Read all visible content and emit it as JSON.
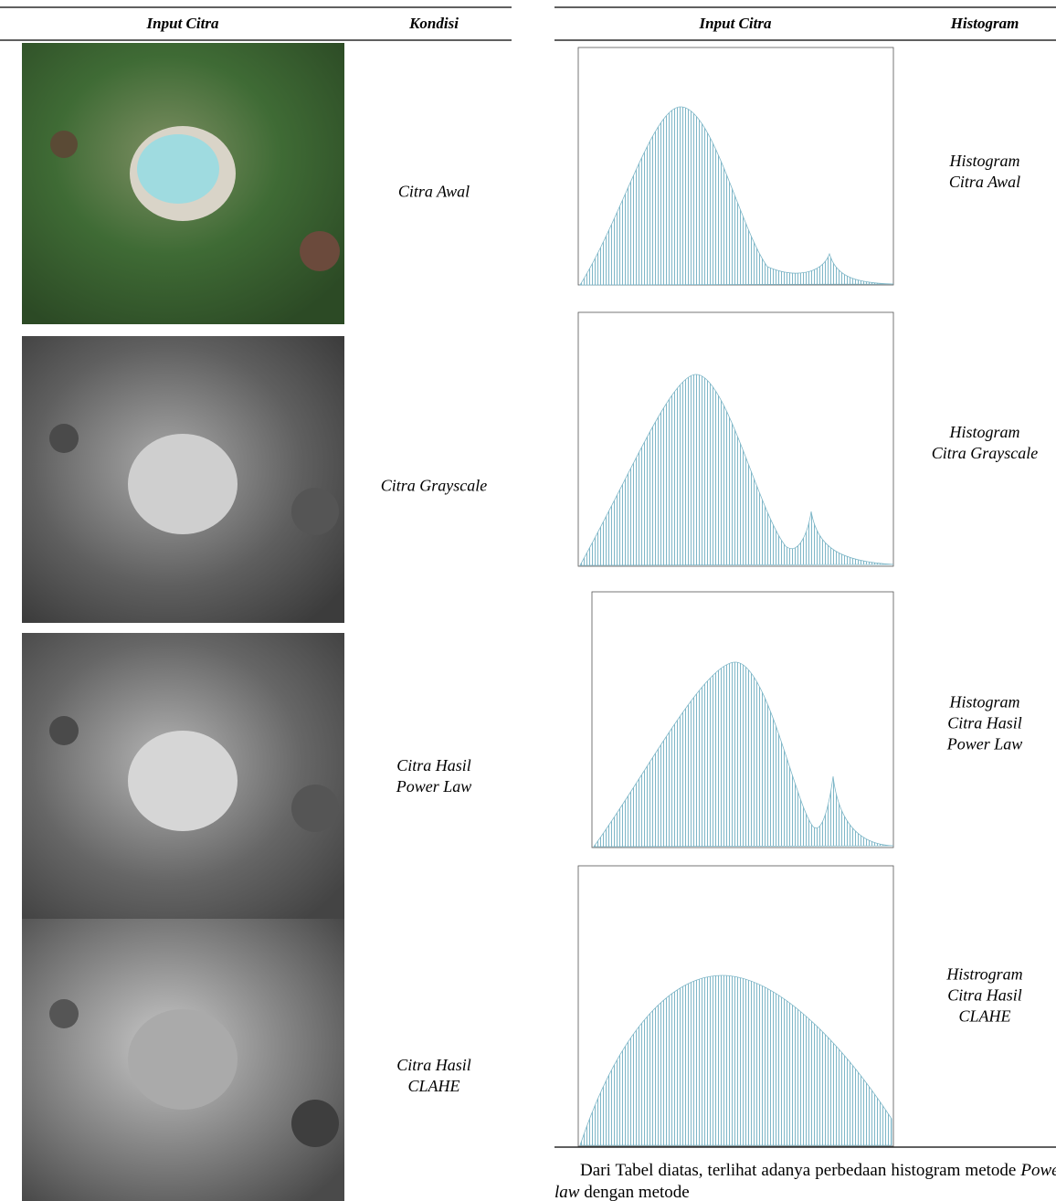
{
  "left_table": {
    "headers": [
      "Input Citra",
      "Kondisi"
    ],
    "rows": [
      [
        "Citra Awal"
      ],
      [
        "Citra Grayscale"
      ],
      [
        "Citra Hasil",
        "Power Law"
      ],
      [
        "Citra Hasil",
        "CLAHE"
      ]
    ]
  },
  "right_table": {
    "headers": [
      "Input Citra",
      "Histogram"
    ],
    "rows": [
      [
        "Histogram",
        "Citra Awal"
      ],
      [
        "Histogram",
        "Citra Grayscale"
      ],
      [
        "Histogram",
        "Citra Hasil",
        "Power Law"
      ],
      [
        "Histrogram",
        "Citra Hasil",
        "CLAHE"
      ]
    ]
  },
  "paragraph": [
    "Dari Tabel diatas, terlihat adanya perbedaan histogram metode ",
    "Power law",
    " dengan metode"
  ]
}
